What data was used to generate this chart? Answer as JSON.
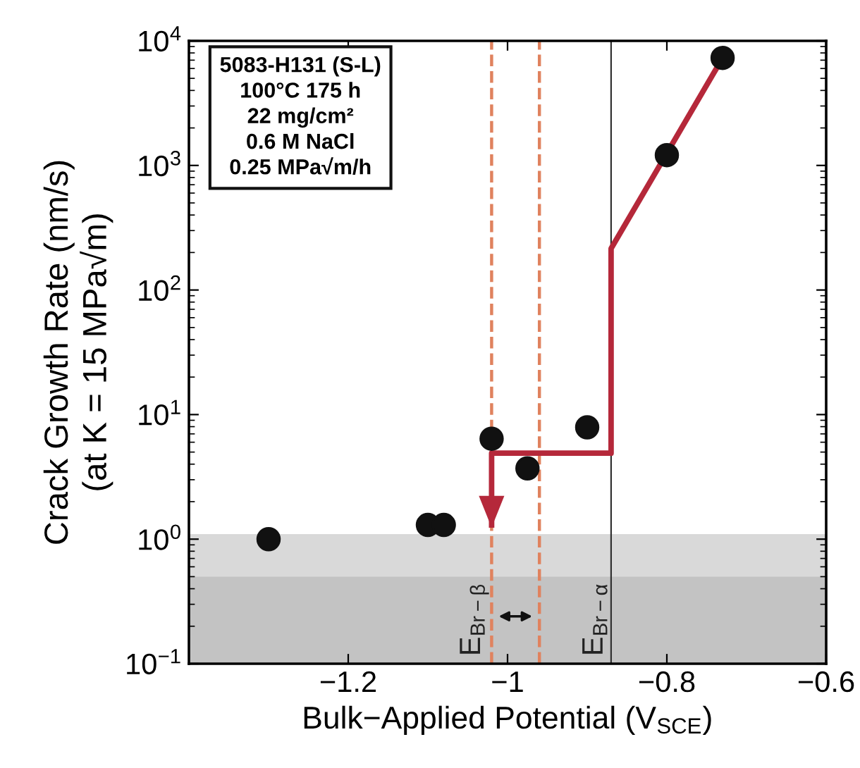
{
  "chart_data": {
    "type": "scatter",
    "xlabel": "Bulk−Applied Potential (V$_{SCE}$)",
    "ylabel": "Crack Growth Rate (nm/s)\n(at K = 15 MPa√m)",
    "xlim": [
      -1.4,
      -0.6
    ],
    "xticks": [
      {
        "value": -1.2,
        "label": "−1.2"
      },
      {
        "value": -1,
        "label": "−1"
      },
      {
        "value": -0.8,
        "label": "−0.8"
      },
      {
        "value": -0.6,
        "label": "−0.6"
      }
    ],
    "ylim": [
      0.1,
      10000
    ],
    "yticks": [
      {
        "value": 0.1,
        "label": "10$^{−1}$"
      },
      {
        "value": 1,
        "label": "10$^{0}$"
      },
      {
        "value": 10,
        "label": "10$^{1}$"
      },
      {
        "value": 100,
        "label": "10$^{2}$"
      },
      {
        "value": 1000,
        "label": "10$^{3}$"
      },
      {
        "value": 10000,
        "label": "10$^{4}$"
      }
    ],
    "log": "y",
    "grid": false,
    "series": [
      {
        "color": "#111111",
        "marker": "circle",
        "x": [
          -1.3,
          -1.1,
          -1.08,
          -1.02,
          -0.975,
          -0.9,
          -0.8,
          -0.73
        ],
        "values": [
          1.0,
          1.3,
          1.3,
          6.4,
          3.7,
          7.9,
          1210,
          7300
        ]
      },
      {
        "type": "line",
        "color": "#b5283a",
        "marker": "none",
        "line_style": "solid",
        "x": [
          -0.73,
          -0.87,
          -0.87,
          -1.02,
          -1.02
        ],
        "values": [
          7300,
          215,
          4.9,
          4.9,
          1.3
        ]
      }
    ],
    "ref_lines": [
      {
        "axis": "x",
        "value": -1.02,
        "label": "E$_{Br−β}$",
        "color": "#e0825e",
        "line_style": "dashed"
      },
      {
        "axis": "x",
        "value": -0.96,
        "label": null,
        "color": "#e0825e",
        "line_style": "dashed"
      },
      {
        "axis": "x",
        "value": -0.87,
        "label": "E$_{Br−α}$",
        "color": "#333333",
        "line_style": "solid"
      }
    ],
    "bands": [
      {
        "axis": "y",
        "from": 0.1,
        "to": 1.1,
        "label": null,
        "color": "#d9d9d9"
      },
      {
        "axis": "y",
        "from": 0.1,
        "to": 0.5,
        "label": null,
        "color": "#c3c3c3"
      }
    ],
    "annotations": [
      "5083-H131 (S-L)\n100°C 175 h\n22 mg/cm²\n0.6 M NaCl\n0.25 MPa√m/h"
    ]
  }
}
